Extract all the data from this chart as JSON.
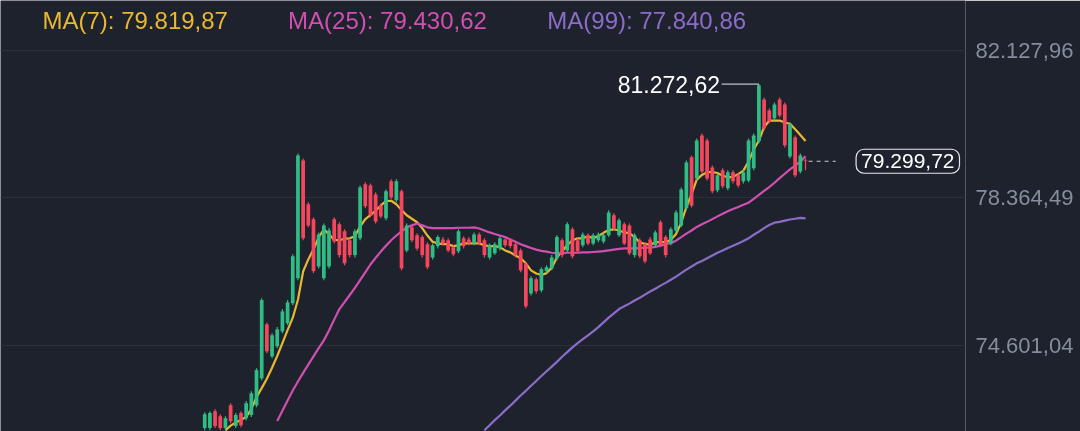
{
  "chart_data": {
    "type": "candlestick",
    "categories": [
      null,
      null,
      null,
      null,
      null,
      null,
      null,
      null,
      null,
      null,
      null,
      null,
      null,
      null,
      null,
      null,
      null,
      null,
      null,
      null,
      null,
      null,
      null,
      null,
      null,
      null,
      null,
      null,
      null,
      null,
      null,
      null,
      null,
      null,
      null,
      null,
      null,
      null,
      null,
      null,
      null,
      null,
      null,
      null,
      null,
      null,
      null,
      null,
      null,
      null,
      null,
      null,
      null,
      null,
      null,
      null,
      null,
      null,
      null,
      null,
      null,
      null,
      null,
      null,
      null,
      null,
      null,
      null,
      null,
      null,
      null,
      null,
      null,
      null,
      null,
      null,
      null,
      null,
      null,
      null,
      null,
      null,
      null,
      null,
      null,
      null,
      null,
      null,
      null,
      null,
      null,
      null,
      null,
      null,
      null,
      null,
      null,
      null,
      null,
      null,
      null,
      null,
      null,
      null,
      null,
      null,
      null,
      null,
      null,
      null,
      null,
      null,
      null,
      null,
      null,
      null,
      null
    ],
    "ohlc": [
      [
        72480,
        72880,
        72420,
        72830
      ],
      [
        72480,
        72910,
        72420,
        72860
      ],
      [
        72910,
        72960,
        72480,
        72530
      ],
      [
        72780,
        72830,
        72420,
        72480
      ],
      [
        72480,
        72780,
        72420,
        72730
      ],
      [
        73060,
        73110,
        72600,
        72650
      ],
      [
        72530,
        72860,
        72480,
        72810
      ],
      [
        72860,
        72910,
        72500,
        72550
      ],
      [
        72730,
        73170,
        72680,
        73110
      ],
      [
        72810,
        73420,
        72760,
        73370
      ],
      [
        73060,
        74010,
        73010,
        73960
      ],
      [
        73750,
        75800,
        73700,
        75750
      ],
      [
        75130,
        75180,
        74390,
        74440
      ],
      [
        74310,
        74900,
        74260,
        74850
      ],
      [
        74570,
        75060,
        74520,
        75000
      ],
      [
        74950,
        75520,
        74900,
        75460
      ],
      [
        75160,
        75750,
        75110,
        75690
      ],
      [
        75670,
        76920,
        75620,
        76870
      ],
      [
        76310,
        79500,
        76260,
        79450
      ],
      [
        79320,
        79370,
        77280,
        77330
      ],
      [
        78200,
        78250,
        77610,
        77660
      ],
      [
        77820,
        77870,
        76440,
        76490
      ],
      [
        76610,
        77480,
        76560,
        77430
      ],
      [
        76310,
        77710,
        76260,
        77660
      ],
      [
        76610,
        77590,
        76560,
        77530
      ],
      [
        77820,
        77870,
        77200,
        77250
      ],
      [
        77690,
        77740,
        76840,
        76900
      ],
      [
        77510,
        77560,
        76640,
        76690
      ],
      [
        77280,
        77330,
        76840,
        76900
      ],
      [
        76900,
        77560,
        76840,
        77510
      ],
      [
        77330,
        78680,
        77280,
        78630
      ],
      [
        78710,
        78760,
        78100,
        78150
      ],
      [
        78680,
        78730,
        77870,
        77920
      ],
      [
        78450,
        78510,
        77710,
        77760
      ],
      [
        78170,
        78220,
        77840,
        77890
      ],
      [
        77840,
        78580,
        77790,
        78530
      ],
      [
        78790,
        78840,
        78330,
        78380
      ],
      [
        78300,
        78840,
        78250,
        78790
      ],
      [
        78530,
        78580,
        76510,
        76560
      ],
      [
        77020,
        77710,
        76970,
        77660
      ],
      [
        77610,
        77660,
        77230,
        77280
      ],
      [
        77410,
        77460,
        77020,
        77070
      ],
      [
        77360,
        77410,
        76840,
        76900
      ],
      [
        77180,
        77230,
        76540,
        76590
      ],
      [
        76840,
        77200,
        76790,
        77150
      ],
      [
        77130,
        77410,
        77070,
        77360
      ],
      [
        77300,
        77360,
        77150,
        77200
      ],
      [
        77280,
        77330,
        76970,
        77020
      ],
      [
        77100,
        77150,
        76870,
        76920
      ],
      [
        77000,
        77560,
        76950,
        77510
      ],
      [
        77330,
        77380,
        77070,
        77130
      ],
      [
        77300,
        77360,
        77150,
        77200
      ],
      [
        77200,
        77480,
        77150,
        77430
      ],
      [
        77430,
        77480,
        77150,
        77200
      ],
      [
        77280,
        77330,
        76840,
        76900
      ],
      [
        76840,
        77200,
        76790,
        77150
      ],
      [
        76950,
        77230,
        76900,
        77180
      ],
      [
        77070,
        77380,
        77020,
        77330
      ],
      [
        77300,
        77330,
        77100,
        77150
      ],
      [
        77280,
        77330,
        77070,
        77130
      ],
      [
        77180,
        77230,
        76840,
        76900
      ],
      [
        77020,
        77070,
        76460,
        76510
      ],
      [
        76670,
        76720,
        75540,
        75590
      ],
      [
        75920,
        76360,
        75870,
        76310
      ],
      [
        76280,
        76330,
        75920,
        75980
      ],
      [
        76000,
        76590,
        75950,
        76540
      ],
      [
        76490,
        76640,
        76440,
        76590
      ],
      [
        76560,
        76900,
        76510,
        76840
      ],
      [
        76820,
        77410,
        76770,
        77360
      ],
      [
        77280,
        77330,
        76840,
        76900
      ],
      [
        77020,
        77740,
        76970,
        77690
      ],
      [
        77560,
        77610,
        76820,
        76870
      ],
      [
        77280,
        77330,
        76950,
        77000
      ],
      [
        77150,
        77480,
        77100,
        77430
      ],
      [
        77410,
        77460,
        77150,
        77200
      ],
      [
        77200,
        77460,
        77150,
        77410
      ],
      [
        77280,
        77480,
        77230,
        77430
      ],
      [
        77250,
        77460,
        77200,
        77410
      ],
      [
        77410,
        78050,
        77360,
        77990
      ],
      [
        77920,
        77970,
        77530,
        77590
      ],
      [
        77410,
        77840,
        77360,
        77790
      ],
      [
        77690,
        77740,
        77150,
        77200
      ],
      [
        77660,
        77710,
        76900,
        76950
      ],
      [
        76900,
        77460,
        76840,
        77410
      ],
      [
        77280,
        77330,
        76820,
        76870
      ],
      [
        77180,
        77230,
        76690,
        76740
      ],
      [
        77300,
        77360,
        76900,
        76950
      ],
      [
        77150,
        77530,
        77100,
        77480
      ],
      [
        77740,
        77790,
        77100,
        77150
      ],
      [
        77360,
        77410,
        76840,
        76900
      ],
      [
        77200,
        77610,
        77150,
        77560
      ],
      [
        77530,
        78050,
        77480,
        77990
      ],
      [
        77660,
        78630,
        77610,
        78580
      ],
      [
        78100,
        79320,
        78050,
        79270
      ],
      [
        79400,
        79450,
        78120,
        78170
      ],
      [
        78860,
        79880,
        78810,
        79830
      ],
      [
        79960,
        80010,
        78990,
        79040
      ],
      [
        79830,
        79880,
        78810,
        78860
      ],
      [
        79140,
        79190,
        78480,
        78530
      ],
      [
        78560,
        78990,
        78510,
        78940
      ],
      [
        79070,
        79120,
        78610,
        78660
      ],
      [
        78610,
        79070,
        78560,
        79020
      ],
      [
        79020,
        79070,
        78730,
        78790
      ],
      [
        78940,
        78990,
        78630,
        78680
      ],
      [
        78790,
        79070,
        78730,
        79020
      ],
      [
        78810,
        79880,
        78760,
        79830
      ],
      [
        79120,
        80010,
        79070,
        79960
      ],
      [
        79810,
        81272.62,
        79760,
        81240
      ],
      [
        80880,
        80930,
        80090,
        80140
      ],
      [
        80600,
        80650,
        80270,
        80320
      ],
      [
        80400,
        80800,
        80340,
        80750
      ],
      [
        80880,
        80930,
        80420,
        80470
      ],
      [
        80750,
        80800,
        79650,
        79710
      ],
      [
        79420,
        80290,
        79370,
        80240
      ],
      [
        79910,
        79960,
        78890,
        78940
      ],
      [
        79040,
        79500,
        78990,
        79450
      ],
      [
        79320,
        79370,
        79070,
        79299.72
      ]
    ],
    "colors": [
      "#2ebd85",
      "#2ebd85",
      "#f6465d",
      "#f6465d",
      "#2ebd85",
      "#f6465d",
      "#2ebd85",
      "#f6465d",
      "#2ebd85",
      "#2ebd85",
      "#2ebd85",
      "#2ebd85",
      "#f6465d",
      "#2ebd85",
      "#2ebd85",
      "#2ebd85",
      "#2ebd85",
      "#2ebd85",
      "#2ebd85",
      "#f6465d",
      "#f6465d",
      "#f6465d",
      "#2ebd85",
      "#2ebd85",
      "#2ebd85",
      "#f6465d",
      "#f6465d",
      "#f6465d",
      "#f6465d",
      "#2ebd85",
      "#2ebd85",
      "#f6465d",
      "#f6465d",
      "#f6465d",
      "#f6465d",
      "#2ebd85",
      "#f6465d",
      "#2ebd85",
      "#f6465d",
      "#2ebd85",
      "#f6465d",
      "#f6465d",
      "#f6465d",
      "#f6465d",
      "#2ebd85",
      "#2ebd85",
      "#f6465d",
      "#f6465d",
      "#f6465d",
      "#2ebd85",
      "#f6465d",
      "#f6465d",
      "#2ebd85",
      "#f6465d",
      "#f6465d",
      "#2ebd85",
      "#2ebd85",
      "#2ebd85",
      "#f6465d",
      "#f6465d",
      "#f6465d",
      "#f6465d",
      "#f6465d",
      "#2ebd85",
      "#f6465d",
      "#2ebd85",
      "#2ebd85",
      "#2ebd85",
      "#2ebd85",
      "#f6465d",
      "#2ebd85",
      "#f6465d",
      "#f6465d",
      "#2ebd85",
      "#f6465d",
      "#2ebd85",
      "#2ebd85",
      "#2ebd85",
      "#2ebd85",
      "#f6465d",
      "#2ebd85",
      "#f6465d",
      "#f6465d",
      "#2ebd85",
      "#f6465d",
      "#f6465d",
      "#f6465d",
      "#2ebd85",
      "#f6465d",
      "#f6465d",
      "#2ebd85",
      "#2ebd85",
      "#2ebd85",
      "#2ebd85",
      "#f6465d",
      "#2ebd85",
      "#f6465d",
      "#f6465d",
      "#f6465d",
      "#2ebd85",
      "#f6465d",
      "#2ebd85",
      "#f6465d",
      "#f6465d",
      "#2ebd85",
      "#2ebd85",
      "#2ebd85",
      "#2ebd85",
      "#f6465d",
      "#f6465d",
      "#2ebd85",
      "#f6465d",
      "#f6465d",
      "#2ebd85",
      "#f6465d",
      "#2ebd85",
      "#f6465d"
    ],
    "series": [
      {
        "name": "MA(7): 79.819,87",
        "type": "line",
        "color": "#e9b730",
        "values": [
          null,
          null,
          null,
          null,
          72420,
          72540,
          72620,
          72690,
          72760,
          72970,
          73270,
          73500,
          73740,
          74020,
          74320,
          74650,
          74980,
          75300,
          75760,
          76480,
          76790,
          77050,
          77350,
          77560,
          77430,
          77290,
          77280,
          77320,
          77330,
          77380,
          77630,
          77820,
          77920,
          78040,
          78170,
          78280,
          78290,
          78200,
          78050,
          77920,
          77830,
          77740,
          77590,
          77400,
          77240,
          77200,
          77180,
          77180,
          77130,
          77150,
          77200,
          77200,
          77200,
          77200,
          77150,
          77130,
          77130,
          77100,
          77020,
          76970,
          76890,
          76820,
          76690,
          76510,
          76430,
          76390,
          76440,
          76580,
          76840,
          77000,
          77160,
          77280,
          77330,
          77330,
          77380,
          77330,
          77390,
          77470,
          77540,
          77560,
          77530,
          77480,
          77460,
          77360,
          77220,
          77190,
          77160,
          77230,
          77230,
          77230,
          77290,
          77440,
          77730,
          78130,
          78460,
          78830,
          78950,
          79020,
          79020,
          79000,
          78930,
          78890,
          78900,
          78970,
          79060,
          79290,
          79600,
          79830,
          80170,
          80340,
          80340,
          80340,
          80290,
          80260,
          80120,
          79970,
          79819.87
        ]
      },
      {
        "name": "MA(25): 79.430,62",
        "type": "line",
        "color": "#d14fb1",
        "values": [
          null,
          null,
          null,
          null,
          null,
          null,
          null,
          null,
          null,
          null,
          null,
          null,
          null,
          null,
          72660,
          72920,
          73180,
          73440,
          73670,
          73890,
          74100,
          74310,
          74520,
          74720,
          74970,
          75250,
          75520,
          75700,
          75880,
          76060,
          76260,
          76460,
          76660,
          76830,
          76990,
          77140,
          77280,
          77400,
          77510,
          77610,
          77660,
          77710,
          77660,
          77610,
          77590,
          77590,
          77590,
          77590,
          77590,
          77600,
          77600,
          77600,
          77610,
          77580,
          77530,
          77480,
          77440,
          77400,
          77360,
          77300,
          77240,
          77180,
          77130,
          77080,
          77040,
          77010,
          76990,
          76960,
          76950,
          76950,
          76960,
          76960,
          76960,
          76970,
          76970,
          76980,
          76990,
          77000,
          77020,
          77040,
          77060,
          77070,
          77070,
          77070,
          77080,
          77090,
          77090,
          77110,
          77140,
          77180,
          77210,
          77270,
          77360,
          77450,
          77530,
          77620,
          77690,
          77750,
          77820,
          77890,
          77960,
          78020,
          78080,
          78130,
          78190,
          78240,
          78340,
          78440,
          78540,
          78640,
          78750,
          78870,
          78980,
          79090,
          79190,
          79290,
          79430.62
        ]
      },
      {
        "name": "MA(99): 77.840,86",
        "type": "line",
        "color": "#8c6cc9",
        "values": [
          null,
          null,
          null,
          null,
          null,
          null,
          null,
          null,
          null,
          null,
          null,
          null,
          null,
          null,
          null,
          null,
          null,
          null,
          null,
          null,
          null,
          null,
          null,
          null,
          null,
          null,
          null,
          null,
          null,
          null,
          null,
          null,
          null,
          null,
          null,
          null,
          null,
          null,
          null,
          null,
          null,
          null,
          null,
          null,
          null,
          null,
          null,
          null,
          null,
          null,
          null,
          null,
          null,
          null,
          72420,
          72550,
          72680,
          72800,
          72930,
          73050,
          73180,
          73310,
          73430,
          73560,
          73680,
          73810,
          73930,
          74050,
          74170,
          74300,
          74420,
          74540,
          74650,
          74750,
          74850,
          74950,
          75060,
          75180,
          75300,
          75410,
          75520,
          75590,
          75660,
          75740,
          75810,
          75890,
          75970,
          76040,
          76120,
          76190,
          76270,
          76350,
          76440,
          76530,
          76610,
          76690,
          76750,
          76820,
          76890,
          76960,
          77020,
          77080,
          77140,
          77200,
          77260,
          77330,
          77420,
          77500,
          77590,
          77670,
          77730,
          77750,
          77780,
          77810,
          77830,
          77850,
          77840.86
        ]
      }
    ],
    "ylim": [
      72390,
      83410
    ],
    "yticks": [
      {
        "value": 74601.04,
        "label": "74.601,04"
      },
      {
        "value": 78364.49,
        "label": "78.364,49"
      },
      {
        "value": 82127.96,
        "label": "82.127,96"
      }
    ],
    "tick_labels": "y",
    "grid": "y",
    "ref_lines": [
      {
        "axis": "y",
        "value": 79299.72,
        "label": "79.299,72",
        "line_style": "dashed",
        "color": "#c9ccd3"
      }
    ],
    "annotations": [
      "81.272,62"
    ]
  }
}
